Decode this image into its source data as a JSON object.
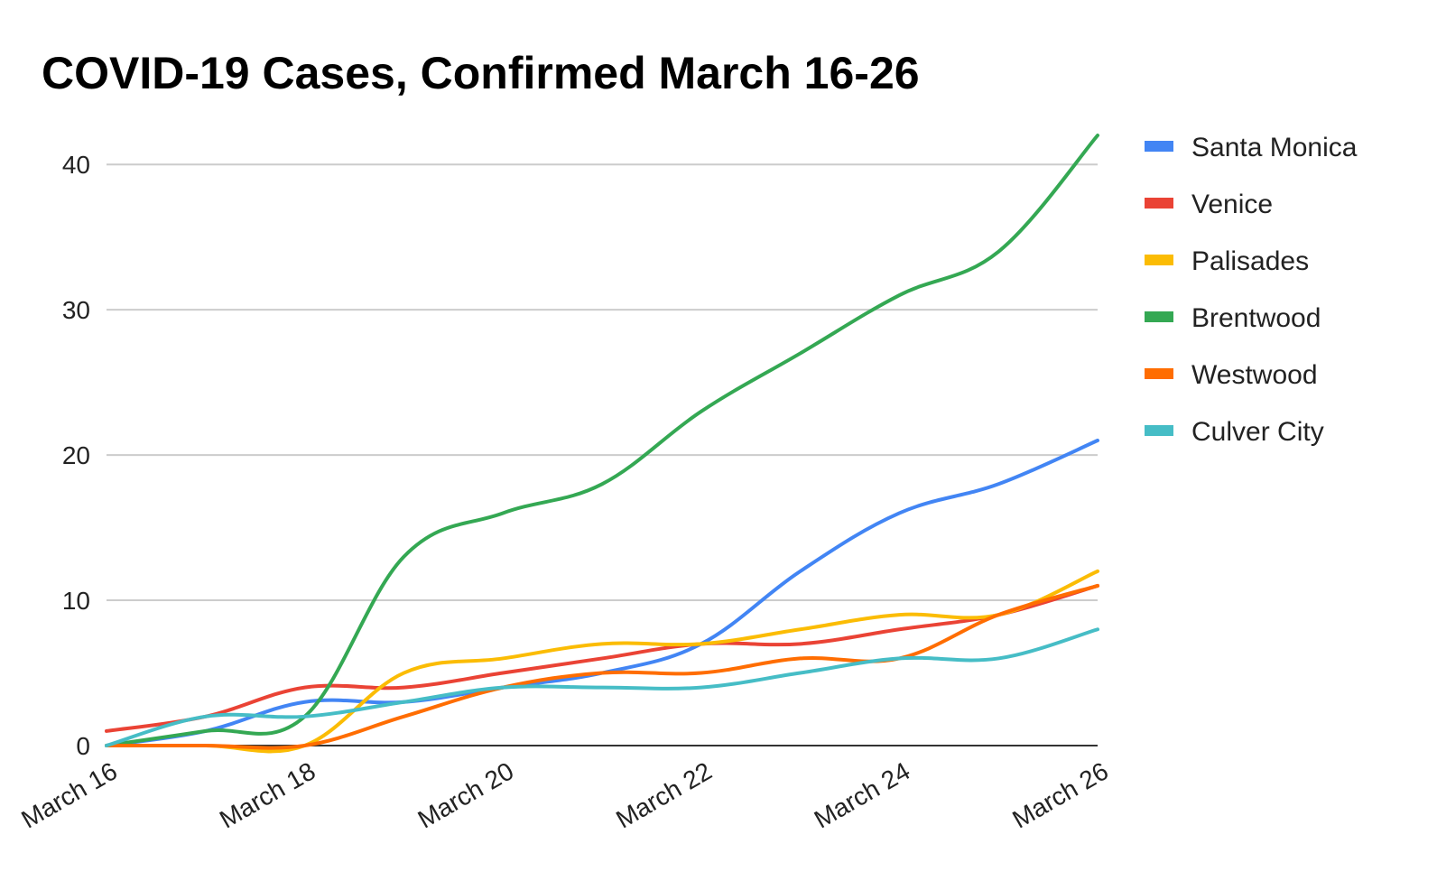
{
  "chart_data": {
    "type": "line",
    "title": "COVID-19 Cases, Confirmed March 16-26",
    "xlabel": "",
    "ylabel": "",
    "x": [
      "March 16",
      "March 17",
      "March 18",
      "March 19",
      "March 20",
      "March 21",
      "March 22",
      "March 23",
      "March 24",
      "March 25",
      "March 26"
    ],
    "x_tick_labels": [
      "March 16",
      "March 18",
      "March 20",
      "March 22",
      "March 24",
      "March 26"
    ],
    "y_ticks": [
      0,
      10,
      20,
      30,
      40
    ],
    "ylim": [
      0,
      42
    ],
    "grid": true,
    "legend_position": "right",
    "series": [
      {
        "name": "Santa Monica",
        "color": "#4285F4",
        "values": [
          0,
          1,
          3,
          3,
          4,
          5,
          7,
          12,
          16,
          18,
          21
        ]
      },
      {
        "name": "Venice",
        "color": "#EA4335",
        "values": [
          1,
          2,
          4,
          4,
          5,
          6,
          7,
          7,
          8,
          9,
          11
        ]
      },
      {
        "name": "Palisades",
        "color": "#FBBC04",
        "values": [
          0,
          0,
          0,
          5,
          6,
          7,
          7,
          8,
          9,
          9,
          12
        ]
      },
      {
        "name": "Brentwood",
        "color": "#34A853",
        "values": [
          0,
          1,
          2,
          13,
          16,
          18,
          23,
          27,
          31,
          34,
          42
        ]
      },
      {
        "name": "Westwood",
        "color": "#FF6D01",
        "values": [
          0,
          0,
          0,
          2,
          4,
          5,
          5,
          6,
          6,
          9,
          11
        ]
      },
      {
        "name": "Culver City",
        "color": "#46BDC6",
        "values": [
          0,
          2,
          2,
          3,
          4,
          4,
          4,
          5,
          6,
          6,
          8
        ]
      }
    ]
  }
}
